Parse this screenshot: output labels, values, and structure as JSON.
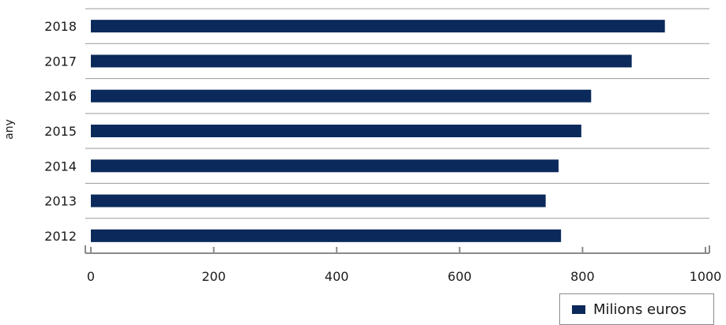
{
  "chart_data": {
    "type": "bar",
    "orientation": "horizontal",
    "categories": [
      "2012",
      "2013",
      "2014",
      "2015",
      "2016",
      "2017",
      "2018"
    ],
    "series": [
      {
        "name": "Milions euros",
        "values": [
          765,
          740,
          761,
          798,
          814,
          880,
          934
        ]
      }
    ],
    "ylabel": "any",
    "xlim": [
      0,
      1000
    ],
    "x_ticks": [
      "0",
      "200",
      "400",
      "600",
      "800",
      "1000"
    ],
    "grid": "horizontal lines between categories",
    "legend_position": "bottom-right",
    "bar_color": "#0b2a5b",
    "grid_color": "#9a9a9a"
  }
}
